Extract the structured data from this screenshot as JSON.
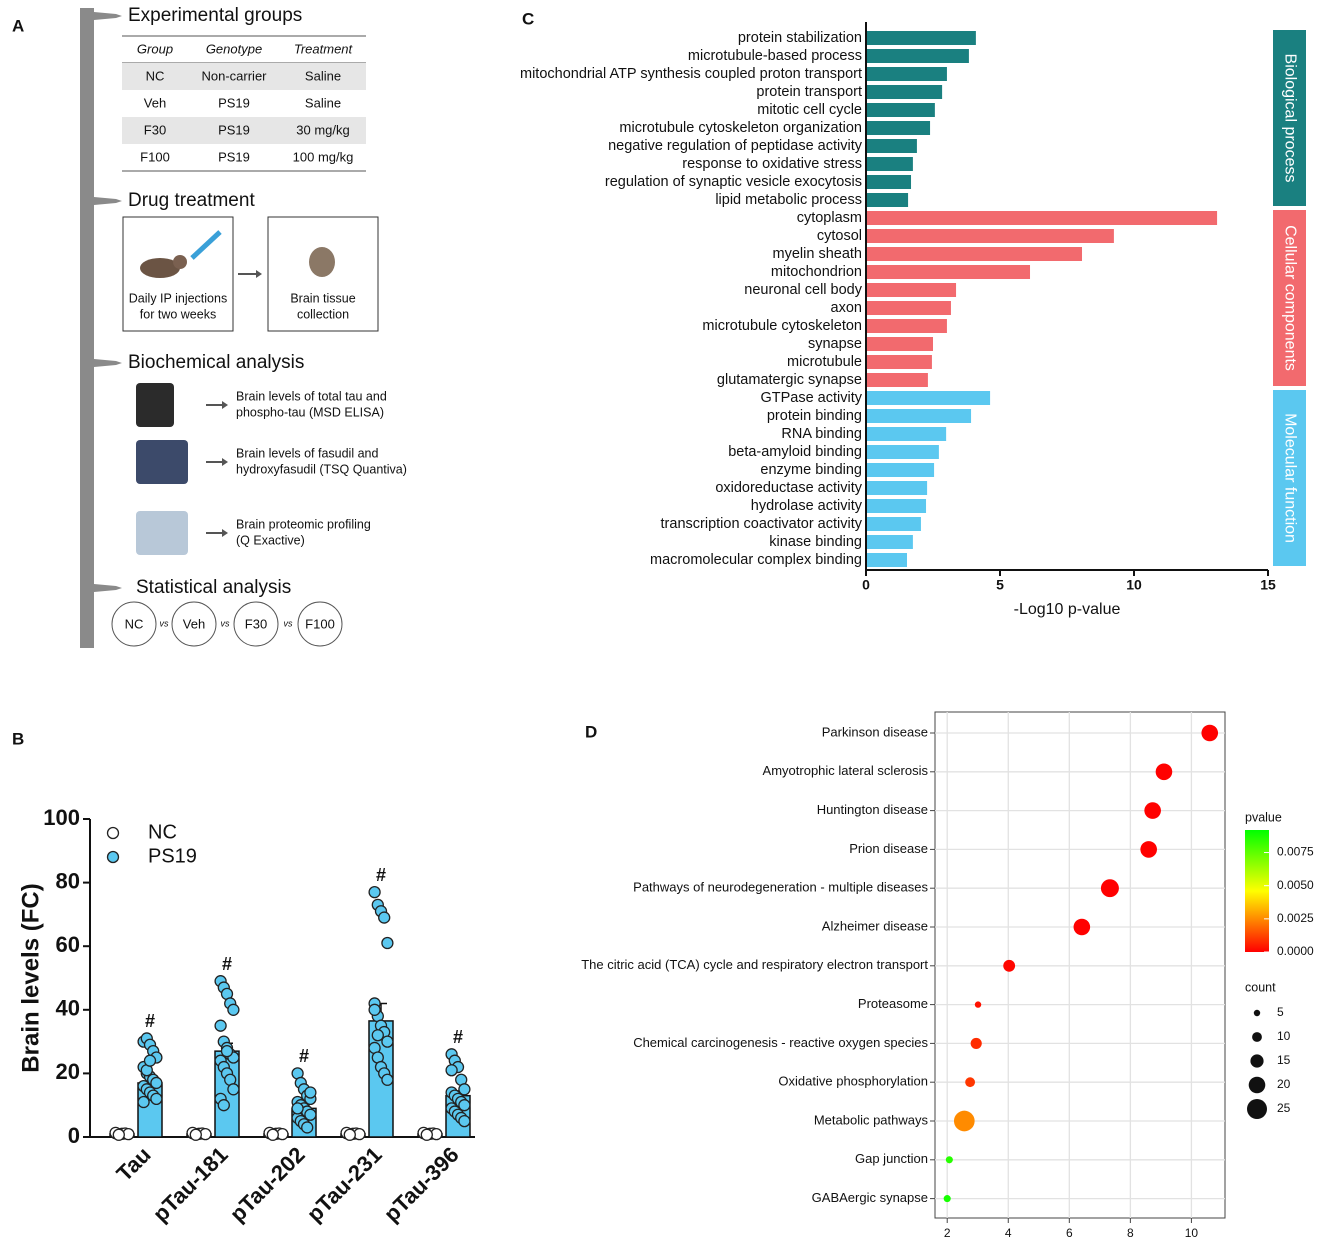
{
  "workflow": {
    "label": "A",
    "experimental_groups": {
      "title": "Experimental groups",
      "header": [
        "Group",
        "Genotype",
        "Treatment"
      ],
      "rows": [
        [
          "NC",
          "Non-carrier",
          "Saline"
        ],
        [
          "Veh",
          "PS19",
          "Saline"
        ],
        [
          "F30",
          "PS19",
          "30 mg/kg"
        ],
        [
          "F100",
          "PS19",
          "100 mg/kg"
        ]
      ]
    },
    "drug_treatment": {
      "title": "Drug treatment",
      "steps": [
        [
          "Daily IP injections",
          "for two weeks"
        ],
        [
          "Brain tissue",
          "collection"
        ]
      ]
    },
    "biochemical_analysis": {
      "title": "Biochemical analysis",
      "items": [
        [
          "Brain levels of total tau and",
          "phospho-tau (MSD ELISA)"
        ],
        [
          "Brain levels of fasudil and",
          "hydroxyfasudil (TSQ Quantiva)"
        ],
        [
          "Brain proteomic profiling",
          "(Q Exactive)"
        ]
      ]
    },
    "statistical_analysis": {
      "title": "Statistical analysis",
      "groups": [
        "NC",
        "Veh",
        "F30",
        "F100"
      ],
      "separator": "vs"
    }
  },
  "chart_data": [
    {
      "label": "B",
      "type": "bar",
      "ylabel": "Brain levels (FC)",
      "categories": [
        "Tau",
        "pTau-181",
        "pTau-202",
        "pTau-231",
        "pTau-396"
      ],
      "ylim": [
        0,
        100
      ],
      "yticks": [
        0,
        20,
        40,
        60,
        80,
        100
      ],
      "legend": "upper left",
      "annotations": [
        "#",
        "#",
        "#",
        "#",
        "#"
      ],
      "series": [
        {
          "name": "NC",
          "color": "#ffffff",
          "values": [
            1,
            1,
            1,
            1,
            1
          ],
          "errors": [
            0.1,
            0.1,
            0.1,
            0.1,
            0.1
          ],
          "points": [
            [
              1.2,
              0.8,
              1.0,
              1.1,
              0.9,
              1.3,
              0.7
            ],
            [
              1.2,
              0.8,
              1.0,
              1.1,
              0.9,
              1.3,
              0.7
            ],
            [
              1.2,
              0.8,
              1.0,
              1.1,
              0.9,
              1.3,
              0.7
            ],
            [
              1.2,
              0.8,
              1.0,
              1.1,
              0.9,
              1.3,
              0.7
            ],
            [
              1.2,
              0.8,
              1.0,
              1.1,
              0.9,
              1.3,
              0.7
            ]
          ]
        },
        {
          "name": "PS19",
          "color": "#5bc8f0",
          "values": [
            17,
            27,
            9,
            36.5,
            13
          ],
          "errors": [
            2,
            2.5,
            1.2,
            5.5,
            1.5
          ],
          "points": [
            [
              30,
              31,
              29,
              27,
              25,
              22,
              20,
              19,
              18,
              17,
              16,
              15,
              14,
              13,
              12,
              11,
              21,
              24
            ],
            [
              49,
              47,
              45,
              42,
              40,
              35,
              30,
              28,
              26,
              25,
              24,
              22,
              20,
              18,
              15,
              12,
              10,
              27
            ],
            [
              20,
              17,
              15,
              13,
              12,
              11,
              10,
              9,
              8,
              7,
              6,
              5,
              4,
              3,
              14,
              9
            ],
            [
              77,
              73,
              71,
              69,
              61,
              42,
              38,
              35,
              33,
              30,
              28,
              25,
              22,
              20,
              18,
              40,
              32
            ],
            [
              26,
              24,
              22,
              18,
              15,
              14,
              13,
              12,
              11,
              10,
              9,
              8,
              7,
              6,
              5,
              21
            ]
          ]
        }
      ]
    },
    {
      "label": "C",
      "type": "hbar",
      "xlabel": "-Log10 p-value",
      "xlim": [
        0,
        15
      ],
      "xticks": [
        0,
        5,
        10,
        15
      ],
      "series": [
        {
          "name": "Biological process",
          "color": "#1a8080",
          "categories": [
            "protein stabilization",
            "microtubule-based process",
            "mitochondrial ATP synthesis coupled proton transport",
            "protein transport",
            "mitotic cell cycle",
            "microtubule cytoskeleton organization",
            "negative regulation of peptidase activity",
            "response to oxidative stress",
            "regulation of synaptic vesicle exocytosis",
            "lipid metabolic process"
          ],
          "values": [
            4.1,
            3.84,
            3.02,
            2.84,
            2.57,
            2.39,
            1.9,
            1.75,
            1.68,
            1.57
          ]
        },
        {
          "name": "Cellular components",
          "color": "#f26a6e",
          "categories": [
            "cytoplasm",
            "cytosol",
            "myelin sheath",
            "mitochondrion",
            "neuronal cell body",
            "axon",
            "microtubule cytoskeleton",
            "synapse",
            "microtubule",
            "glutamatergic synapse"
          ],
          "values": [
            13.1,
            9.25,
            8.06,
            6.12,
            3.36,
            3.17,
            3.02,
            2.5,
            2.46,
            2.31
          ]
        },
        {
          "name": "Molecular function",
          "color": "#5bc8f0",
          "categories": [
            "GTPase activity",
            "protein binding",
            "RNA binding",
            "beta-amyloid binding",
            "enzyme binding",
            "oxidoreductase activity",
            "hydrolase activity",
            "transcription coactivator activity",
            "kinase binding",
            "macromolecular complex binding"
          ],
          "values": [
            4.63,
            3.92,
            2.99,
            2.72,
            2.54,
            2.28,
            2.24,
            2.05,
            1.75,
            1.53
          ]
        }
      ]
    },
    {
      "label": "D",
      "type": "dot",
      "categories": [
        "Parkinson disease",
        "Amyotrophic lateral sclerosis",
        "Huntington disease",
        "Prion disease",
        "Pathways of neurodegeneration -  multiple diseases",
        "Alzheimer disease",
        "The citric acid (TCA) cycle and respiratory electron transport",
        "Proteasome",
        "Chemical carcinogenesis -  reactive oxygen species",
        "Oxidative phosphorylation",
        "Metabolic pathways",
        "Gap junction",
        "GABAergic synapse"
      ],
      "values": [
        10.6,
        9.1,
        8.73,
        8.6,
        7.33,
        6.41,
        4.03,
        3.01,
        2.95,
        2.75,
        2.56,
        2.07,
        2.0
      ],
      "counts": [
        20,
        20,
        20,
        20,
        22,
        20,
        13,
        5,
        12,
        10,
        26,
        6,
        6
      ],
      "pvalues": [
        1e-05,
        1e-05,
        1e-05,
        1e-05,
        1e-05,
        2e-05,
        0.0001,
        0.0003,
        0.0008,
        0.001,
        0.0025,
        0.0085,
        0.0088
      ],
      "xlim": [
        1.6,
        11.1
      ],
      "xticks": [
        2,
        4,
        6,
        8,
        10
      ],
      "grid": true,
      "color_title": "pvalue",
      "color_low": "#ff0000",
      "color_high": "#00ff00",
      "color_lim": [
        0,
        0.0092
      ],
      "color_ticks": [
        {
          "value": 0,
          "label": "0.0000"
        },
        {
          "value": 0.0025,
          "label": "0.0025"
        },
        {
          "value": 0.005,
          "label": "0.0050"
        },
        {
          "value": 0.0075,
          "label": "0.0075"
        }
      ],
      "size_title": "count",
      "size_legend": [
        5,
        10,
        15,
        20,
        25
      ]
    }
  ]
}
